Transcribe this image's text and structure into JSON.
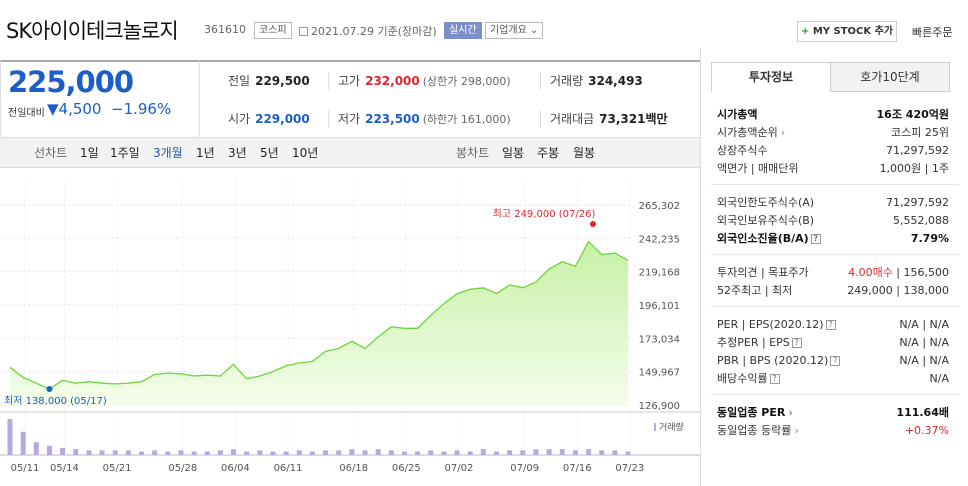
{
  "header": {
    "company": "SK아이이테크놀로지",
    "code": "361610",
    "market": "코스피",
    "date": "2021.07.29",
    "date_suffix": "기준(장마감)",
    "live": "실시간",
    "info": "기업개요",
    "mystock_plus": "+",
    "mystock": "MY STOCK 추가",
    "quick": "빠른주문"
  },
  "price": {
    "current": "225,000",
    "prev_label": "전일대비",
    "change": "▼4,500",
    "rate": "−1.96%"
  },
  "stats": {
    "prev_close_label": "전일",
    "prev_close": "229,500",
    "high_label": "고가",
    "high": "232,000",
    "high_limit": "(상한가 298,000)",
    "volume_label": "거래량",
    "volume": "324,493",
    "open_label": "시가",
    "open": "229,000",
    "low_label": "저가",
    "low": "223,500",
    "low_limit": "(하한가 161,000)",
    "amount_label": "거래대금",
    "amount": "73,321",
    "amount_unit": "백만"
  },
  "tabs": {
    "line_label": "선차트",
    "line": [
      "1일",
      "1주일",
      "3개월",
      "1년",
      "3년",
      "5년",
      "10년"
    ],
    "candle_label": "봉차트",
    "candle": [
      "일봉",
      "주봉",
      "월봉"
    ]
  },
  "chart_data": {
    "type": "area",
    "y_ticks": [
      "265,302",
      "242,235",
      "219,168",
      "196,101",
      "173,034",
      "149,967",
      "126,900"
    ],
    "ylim": [
      126900,
      265302
    ],
    "x_ticks": [
      "05/11",
      "05/14",
      "05/21",
      "05/28",
      "06/04",
      "06/11",
      "06/18",
      "06/25",
      "07/02",
      "07/09",
      "07/16",
      "07/23"
    ],
    "values": [
      153000,
      146000,
      142000,
      138000,
      144000,
      142000,
      143000,
      142000,
      141500,
      142000,
      143000,
      148000,
      149000,
      148500,
      147000,
      147500,
      147000,
      155000,
      145000,
      147000,
      150000,
      154000,
      156000,
      157000,
      164000,
      166000,
      171000,
      166000,
      174000,
      181000,
      180000,
      180000,
      189000,
      197000,
      204000,
      207000,
      208000,
      204000,
      210000,
      208000,
      212000,
      221000,
      226000,
      223000,
      240000,
      231000,
      232000,
      227000
    ],
    "volumes": [
      31,
      20,
      11,
      8,
      6,
      5,
      4,
      4,
      4,
      4,
      3,
      4,
      3,
      4,
      3,
      3,
      4,
      5,
      3,
      4,
      3,
      3,
      4,
      3,
      4,
      4,
      5,
      4,
      5,
      4,
      3,
      3,
      4,
      3,
      4,
      3,
      5,
      3,
      4,
      4,
      5,
      5,
      5,
      4,
      5,
      4,
      4,
      3
    ],
    "max_label": "최고 249,000 (07/26)",
    "min_label": "최저 138,000 (05/17)",
    "volume_legend": "거래량"
  },
  "panel": {
    "tab_active": "투자정보",
    "tab_inactive": "호가10단계",
    "rows": [
      {
        "l": "시가총액",
        "v": "16조 420억원",
        "bold": true
      },
      {
        "l": "시가총액순위",
        "arrow": "›",
        "v": "코스피 25위"
      },
      {
        "l": "상장주식수",
        "v": "71,297,592"
      },
      {
        "l": "액면가 | 매매단위",
        "v": "1,000원 | 1주"
      },
      {
        "l": "외국인한도주식수(A)",
        "v": "71,297,592"
      },
      {
        "l": "외국인보유주식수(B)",
        "v": "5,552,088"
      },
      {
        "l": "외국인소진율(B/A)",
        "q": "?",
        "v": "7.79%",
        "bold": true
      },
      {
        "l": "투자의견 | 목표주가",
        "vr": "4.00매수",
        "v": " | 156,500"
      },
      {
        "l": "52주최고 | 최저",
        "v": "249,000 | 138,000"
      },
      {
        "l": "PER | EPS(2020.12)",
        "q": "?",
        "v": "N/A | N/A"
      },
      {
        "l": "추정PER | EPS",
        "q": "?",
        "v": "N/A | N/A"
      },
      {
        "l": "PBR | BPS (2020.12)",
        "q": "?",
        "v": "N/A | N/A"
      },
      {
        "l": "배당수익률",
        "q": "?",
        "v": "N/A"
      },
      {
        "l": "동일업종 PER",
        "arrow": "›",
        "v": "111.64배",
        "bold": true
      },
      {
        "l": "동일업종 등락률",
        "arrow": "›",
        "vr": "+0.37%"
      }
    ]
  }
}
